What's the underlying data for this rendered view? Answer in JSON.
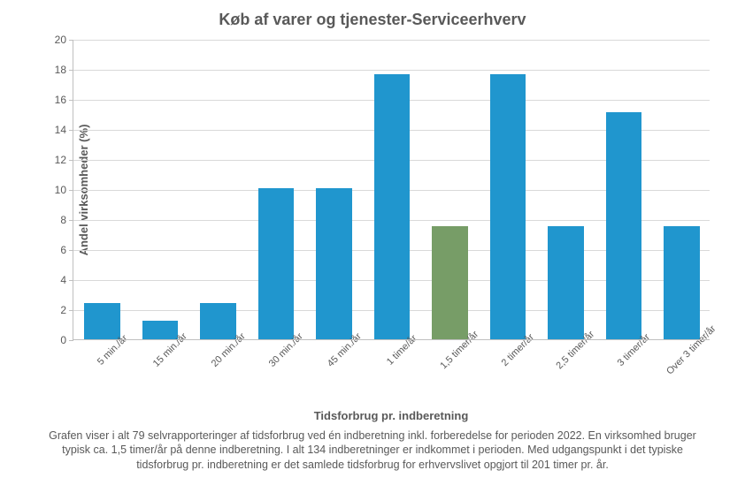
{
  "chart": {
    "type": "bar",
    "title": "Køb af varer og tjenester-Serviceerhverv",
    "title_fontsize": 18,
    "title_fontweight": "bold",
    "y_axis_title": "Andel virksomheder (%)",
    "x_axis_title": "Tidsforbrug pr. indberetning",
    "caption": "Grafen viser i alt 79 selvrapporteringer af tidsforbrug ved én indberetning inkl. forberedelse for perioden 2022. En virksomhed bruger typisk ca. 1,5 timer/år på denne indberetning. I alt 134 indberetninger er indkommet i perioden. Med udgangspunkt i det typiske tidsforbrug pr. indberetning er det samlede tidsforbrug for erhvervslivet opgjort til 201 timer pr. år.",
    "categories": [
      "5 min./år",
      "15 min./år",
      "20 min./år",
      "30 min./år",
      "45 min./år",
      "1 time/år",
      "1,5 timer/år",
      "2 timer/år",
      "2,5 timer/år",
      "3 timer/år",
      "Over 3 timer/år"
    ],
    "values": [
      2.5,
      1.3,
      2.5,
      10.1,
      10.1,
      17.7,
      7.6,
      17.7,
      7.6,
      15.2,
      7.6
    ],
    "bar_colors": [
      "#2096ce",
      "#2096ce",
      "#2096ce",
      "#2096ce",
      "#2096ce",
      "#2096ce",
      "#779d67",
      "#2096ce",
      "#2096ce",
      "#2096ce",
      "#2096ce"
    ],
    "ylim": [
      0,
      20
    ],
    "ytick_step": 2,
    "background_color": "#ffffff",
    "grid_color": "#d9d9d9",
    "axis_line_color": "#bfbfbf",
    "text_color": "#595959",
    "bar_width_ratio": 0.62,
    "tick_label_fontsize": 12,
    "axis_title_fontsize": 13,
    "caption_fontsize": 12.5
  }
}
